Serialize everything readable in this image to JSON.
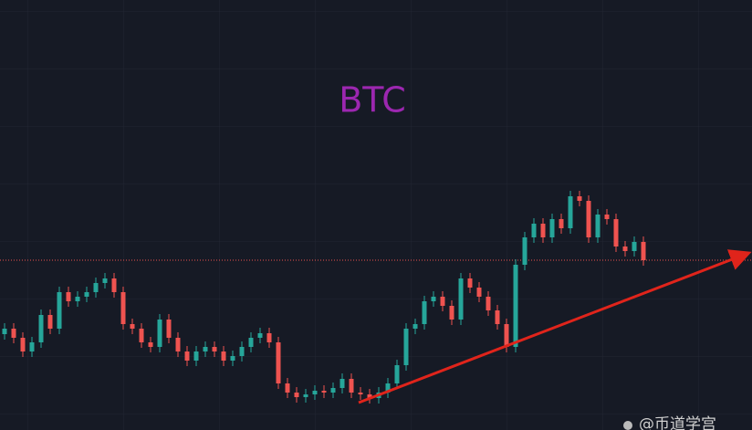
{
  "chart_data": {
    "type": "candlestick",
    "title": "BTC",
    "watermark": "@币道学宫",
    "ylim": [
      0,
      471
    ],
    "price_line": 186,
    "up_color": "#26a69a",
    "down_color": "#ef5350",
    "price_line_color": "#ef5350",
    "open": [
      105,
      111,
      101,
      86,
      96,
      126,
      111,
      151,
      141,
      146,
      151,
      161,
      166,
      151,
      116,
      111,
      96,
      91,
      121,
      101,
      86,
      76,
      86,
      91,
      86,
      76,
      81,
      91,
      101,
      106,
      96,
      51,
      41,
      36,
      39,
      43,
      41,
      46,
      56,
      41,
      39,
      35,
      41,
      51,
      71,
      111,
      116,
      141,
      146,
      136,
      121,
      166,
      156,
      146,
      131,
      116,
      91,
      181,
      211,
      226,
      211,
      231,
      221,
      256,
      251,
      211,
      236,
      231,
      201,
      196,
      206
    ],
    "high": [
      117,
      117,
      107,
      102,
      132,
      132,
      157,
      157,
      152,
      157,
      167,
      172,
      172,
      157,
      122,
      117,
      102,
      127,
      127,
      107,
      92,
      92,
      97,
      97,
      92,
      87,
      97,
      107,
      112,
      112,
      102,
      57,
      47,
      45,
      49,
      49,
      52,
      62,
      62,
      47,
      45,
      47,
      57,
      77,
      117,
      122,
      147,
      152,
      152,
      142,
      172,
      172,
      162,
      152,
      137,
      122,
      187,
      217,
      232,
      232,
      237,
      237,
      262,
      262,
      257,
      242,
      242,
      237,
      207,
      212,
      212
    ],
    "low": [
      99,
      95,
      80,
      80,
      90,
      105,
      105,
      135,
      135,
      140,
      145,
      155,
      145,
      110,
      105,
      90,
      85,
      85,
      95,
      80,
      70,
      70,
      80,
      80,
      70,
      70,
      75,
      85,
      95,
      90,
      45,
      35,
      30,
      30,
      33,
      35,
      35,
      40,
      35,
      33,
      29,
      29,
      35,
      45,
      65,
      105,
      110,
      135,
      130,
      115,
      115,
      150,
      140,
      125,
      110,
      85,
      85,
      175,
      205,
      205,
      205,
      215,
      215,
      245,
      205,
      205,
      225,
      195,
      190,
      190,
      180
    ],
    "close": [
      111,
      101,
      86,
      96,
      126,
      111,
      151,
      141,
      146,
      151,
      161,
      166,
      151,
      116,
      111,
      96,
      91,
      121,
      101,
      86,
      76,
      86,
      91,
      86,
      76,
      81,
      91,
      101,
      106,
      96,
      51,
      41,
      36,
      39,
      43,
      41,
      46,
      56,
      41,
      39,
      35,
      41,
      51,
      71,
      111,
      116,
      141,
      146,
      136,
      121,
      166,
      156,
      146,
      131,
      116,
      91,
      181,
      211,
      226,
      211,
      231,
      221,
      256,
      251,
      211,
      236,
      231,
      201,
      196,
      206,
      186
    ]
  }
}
